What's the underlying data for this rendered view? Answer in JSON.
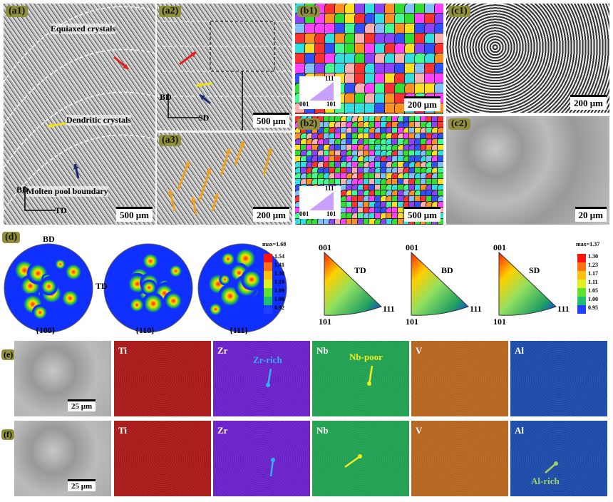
{
  "figure": {
    "a1": {
      "label": "(a1)",
      "annotations": [
        "Equiaxed crystals",
        "Dendritic crystals",
        "Molten pool boundary"
      ],
      "axis_labels": [
        "BD",
        "TD"
      ],
      "scale_bar": "500 μm"
    },
    "a2": {
      "label": "(a2)",
      "axis_labels": [
        "BD",
        "SD"
      ],
      "scale_bar": "500 μm"
    },
    "a3": {
      "label": "(a3)",
      "scale_bar": "200 μm"
    },
    "b1": {
      "label": "(b1)",
      "ipf_labels": [
        "111",
        "001",
        "101"
      ],
      "scale_bar": "200 μm"
    },
    "b2": {
      "label": "(b2)",
      "ipf_labels": [
        "111",
        "001",
        "101"
      ],
      "scale_bar": "500 μm"
    },
    "c1": {
      "label": "(c1)",
      "scale_bar": "200 μm"
    },
    "c2": {
      "label": "(c2)",
      "scale_bar": "20 μm"
    },
    "d": {
      "label": "(d)",
      "pole_figures": [
        "{100}",
        "{110}",
        "{111}"
      ],
      "pole_axes": [
        "BD",
        "TD"
      ],
      "pf_scale": [
        "max=1.68",
        "1.54",
        "1.41",
        "1.30",
        "1.19",
        "1.09",
        "1.00",
        "0.92"
      ],
      "ipf_corners": [
        "001",
        "111",
        "101"
      ],
      "ipf_directions": [
        "TD",
        "BD",
        "SD"
      ],
      "ipf_scale": [
        "max=1.37",
        "1.30",
        "1.23",
        "1.17",
        "1.11",
        "1.05",
        "1.00",
        "0.95"
      ]
    },
    "e": {
      "label": "(e)",
      "maps": [
        "Ti",
        "Zr",
        "Nb",
        "V",
        "Al"
      ],
      "annotations": [
        "Zr-rich",
        "Nb-poor"
      ],
      "scale_bar": "25 μm"
    },
    "f": {
      "label": "(f)",
      "maps": [
        "Ti",
        "Zr",
        "Nb",
        "V",
        "Al"
      ],
      "annotations": [
        "Al-rich"
      ],
      "scale_bar": "25 μm"
    }
  }
}
